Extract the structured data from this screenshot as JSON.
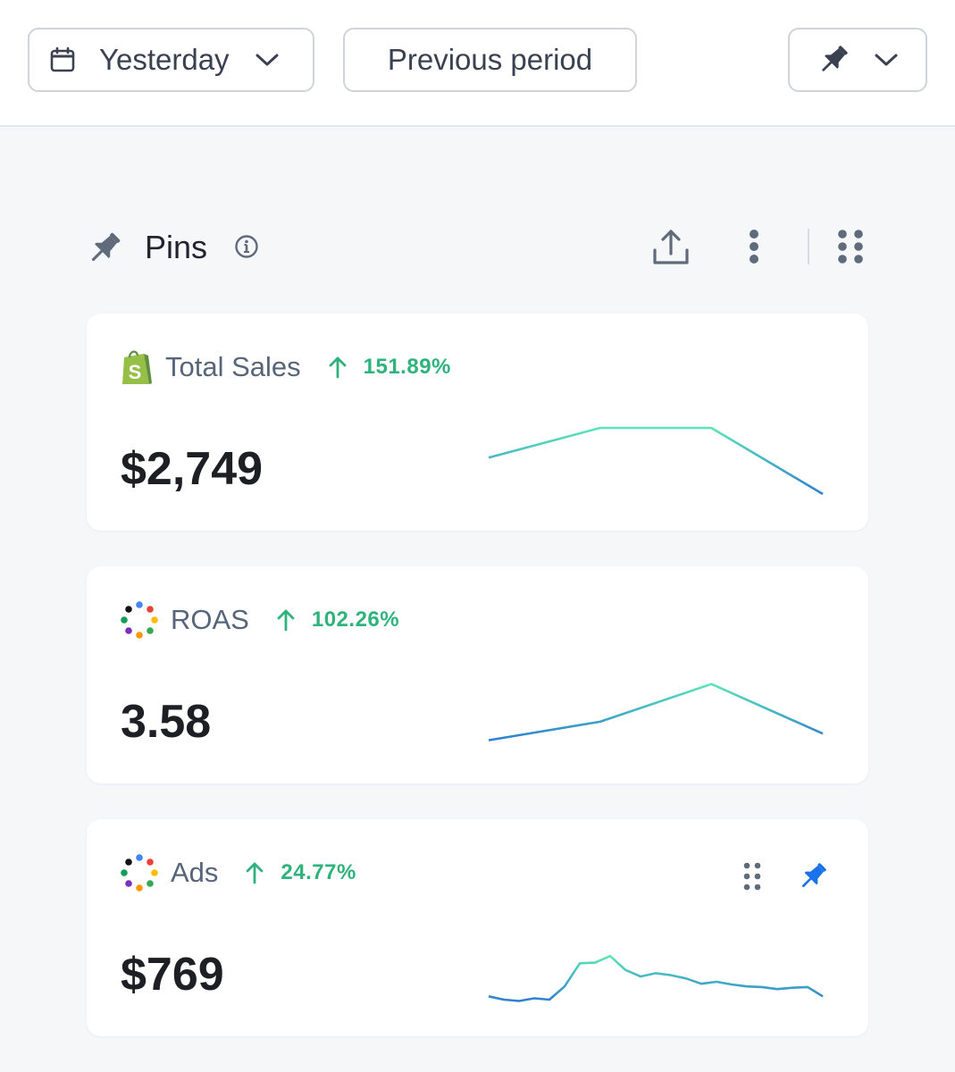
{
  "toolbar": {
    "date_range": {
      "label": "Yesterday",
      "icon": "calendar-icon"
    },
    "compare": {
      "label": "Previous period"
    },
    "pin_menu": {
      "icon": "pin-icon"
    }
  },
  "pins": {
    "title": "Pins",
    "icons": [
      "pin-icon",
      "info-icon",
      "export-icon",
      "kebab-icon",
      "grid-icon"
    ]
  },
  "colors": {
    "positive": "#2fb27c",
    "spark_start": "#2f7fd0",
    "spark_end": "#5ce6b8",
    "active_pin": "#1a73e8"
  },
  "cards": [
    {
      "name": "Total Sales",
      "source_icon": "shopify-icon",
      "delta": "151.89%",
      "value": "$2,749",
      "trend": [
        0.55,
        1.0,
        1.0,
        0.0
      ]
    },
    {
      "name": "ROAS",
      "source_icon": "multi-source-icon",
      "delta": "102.26%",
      "value": "3.58",
      "trend": [
        0.1,
        0.38,
        0.95,
        0.2
      ]
    },
    {
      "name": "Ads",
      "source_icon": "multi-source-icon",
      "delta": "24.77%",
      "value": "$769",
      "trend": [
        0.05,
        0.0,
        -0.02,
        0.02,
        0.0,
        0.2,
        0.55,
        0.56,
        0.66,
        0.45,
        0.35,
        0.4,
        0.37,
        0.32,
        0.24,
        0.27,
        0.23,
        0.2,
        0.19,
        0.16,
        0.18,
        0.19,
        0.05
      ],
      "actions": [
        "drag-handle-icon",
        "pin-icon"
      ]
    }
  ]
}
